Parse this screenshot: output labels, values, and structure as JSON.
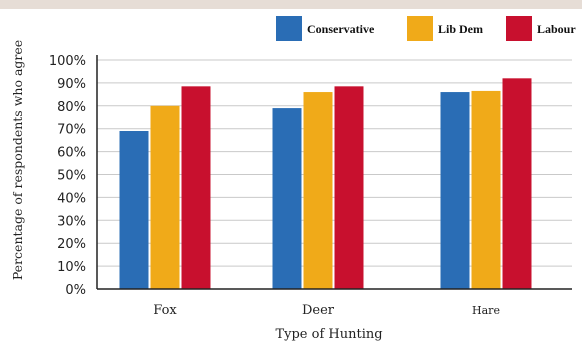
{
  "chart_data": {
    "type": "bar",
    "title": "",
    "xlabel": "Type of Hunting",
    "ylabel": "Percentage of respondents who agree",
    "categories": [
      "Fox",
      "Deer",
      "Hare"
    ],
    "series": [
      {
        "name": "Conservative",
        "color": "#2a6db5",
        "values": [
          69,
          79,
          86
        ]
      },
      {
        "name": "Lib Dem",
        "color": "#f0aa19",
        "values": [
          80,
          86,
          86.5
        ]
      },
      {
        "name": "Labour",
        "color": "#c8102e",
        "values": [
          88.5,
          88.5,
          92
        ]
      }
    ],
    "ylim": [
      0,
      100
    ],
    "yticks": [
      "0%",
      "10%",
      "20%",
      "30%",
      "40%",
      "50%",
      "60%",
      "70%",
      "80%",
      "90%",
      "100%"
    ],
    "grid": true,
    "legend_position": "top-right"
  }
}
